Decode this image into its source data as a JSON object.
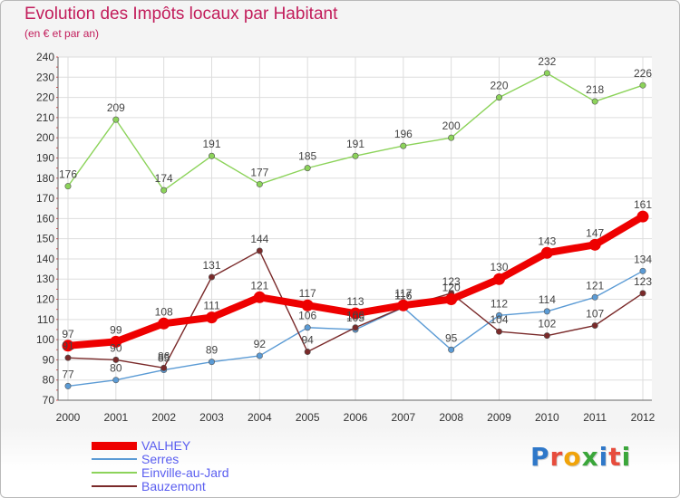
{
  "title": "Evolution des Impôts locaux par Habitant",
  "subtitle": "(en € et par an)",
  "colors": {
    "title": "#c21d5b",
    "legend_text": "#5a5ef0",
    "axis_text": "#333333",
    "grid": "#dddddd"
  },
  "logo": {
    "letters": [
      "P",
      "r",
      "o",
      "x",
      "i",
      "t",
      "i"
    ],
    "colors": [
      "#2f78c9",
      "#e74c3c",
      "#f0a30a",
      "#3aa63a",
      "#2f78c9",
      "#e74c3c",
      "#3aa63a"
    ]
  },
  "chart_data": {
    "type": "line",
    "title": "Evolution des Impôts locaux par Habitant",
    "subtitle": "(en € et par an)",
    "x": [
      "2000",
      "2001",
      "2002",
      "2003",
      "2004",
      "2005",
      "2006",
      "2007",
      "2008",
      "2009",
      "2010",
      "2011",
      "2012"
    ],
    "ylim": [
      70,
      240
    ],
    "yticks": [
      70,
      80,
      90,
      100,
      110,
      120,
      130,
      140,
      150,
      160,
      170,
      180,
      190,
      200,
      210,
      220,
      230,
      240
    ],
    "grid": true,
    "legend_position": "bottom-left",
    "series": [
      {
        "name": "VALHEY",
        "color": "#ee0000",
        "values": [
          97,
          99,
          108,
          111,
          121,
          117,
          113,
          117,
          120,
          130,
          143,
          147,
          161
        ],
        "labels": [
          "97",
          "99",
          "108",
          "111",
          "121",
          "117",
          "113",
          "117",
          "120",
          "130",
          "143",
          "147",
          "161"
        ],
        "emphasis": true
      },
      {
        "name": "Serres",
        "color": "#5b9bd5",
        "values": [
          77,
          80,
          85,
          89,
          92,
          106,
          105,
          116,
          95,
          112,
          114,
          121,
          134
        ],
        "labels": [
          "77",
          "80",
          "85",
          "89",
          "92",
          "106",
          "105",
          "116",
          "95",
          "112",
          "114",
          "121",
          "134"
        ]
      },
      {
        "name": "Einville-au-Jard",
        "color": "#8cd35a",
        "values": [
          176,
          209,
          174,
          191,
          177,
          185,
          191,
          196,
          200,
          220,
          232,
          218,
          226
        ],
        "labels": [
          "176",
          "209",
          "174",
          "191",
          "177",
          "185",
          "191",
          "196",
          "200",
          "220",
          "232",
          "218",
          "226"
        ]
      },
      {
        "name": "Bauzemont",
        "color": "#7a2a2a",
        "values": [
          91,
          90,
          86,
          131,
          144,
          94,
          106,
          116,
          123,
          104,
          102,
          107,
          123
        ],
        "labels": [
          "91",
          "90",
          "86",
          "131",
          "144",
          "94",
          "106",
          "116",
          "123",
          "104",
          "102",
          "107",
          "123"
        ]
      }
    ]
  }
}
